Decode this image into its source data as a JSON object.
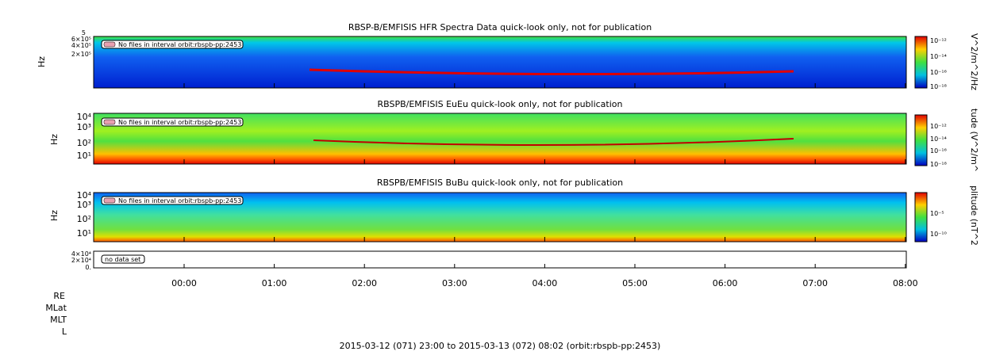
{
  "title_1": "RBSP-B/EMFISIS  HFR Spectra Data quick-look only, not for publication",
  "title_2": "RBSPB/EMFISIS  EuEu quick-look only, not for publication",
  "title_3": "RBSPB/EMFISIS  BuBu quick-look only, not for publication",
  "ylabel": "Hz",
  "panel_1_yticks": [
    "6×10⁵",
    "4×10⁵",
    "2×10⁵"
  ],
  "panel_1_top": "5",
  "panel_2_yticks": [
    "10⁴",
    "10³",
    "10²",
    "10¹"
  ],
  "panel_3_yticks": [
    "10⁴",
    "10³",
    "10²",
    "10¹"
  ],
  "panel_4_yticks": [
    "4×10⁴",
    "2×10⁴",
    "0."
  ],
  "cbar_1_label": "V^2/m^2/Hz",
  "cbar_1_ticks": [
    "10⁻¹²",
    "10⁻¹⁴",
    "10⁻¹⁶",
    "10⁻¹⁸"
  ],
  "cbar_2_label": "tude (V^2/m^",
  "cbar_2_ticks": [
    "10⁻¹²",
    "10⁻¹⁴",
    "10⁻¹⁶",
    "10⁻¹⁸"
  ],
  "cbar_3_label": "plitude (nT^2",
  "cbar_3_ticks": [
    "10⁻⁵",
    "10⁻¹⁰"
  ],
  "annotation_1": "No files in interval orbit:rbspb-pp:2453",
  "annotation_2": "No files in interval orbit:rbspb-pp:2453",
  "annotation_3": "No files in interval orbit:rbspb-pp:2453",
  "annotation_4": "no data set",
  "xticks": [
    "00:00",
    "01:00",
    "02:00",
    "03:00",
    "04:00",
    "05:00",
    "06:00",
    "07:00",
    "08:00"
  ],
  "ephemeris_labels": [
    "RE",
    "MLat",
    "MLT",
    "L"
  ],
  "footer": "2015-03-12 (071) 23:00 to 2015-03-13 (072) 08:02 (orbit:rbspb-pp:2453)"
}
